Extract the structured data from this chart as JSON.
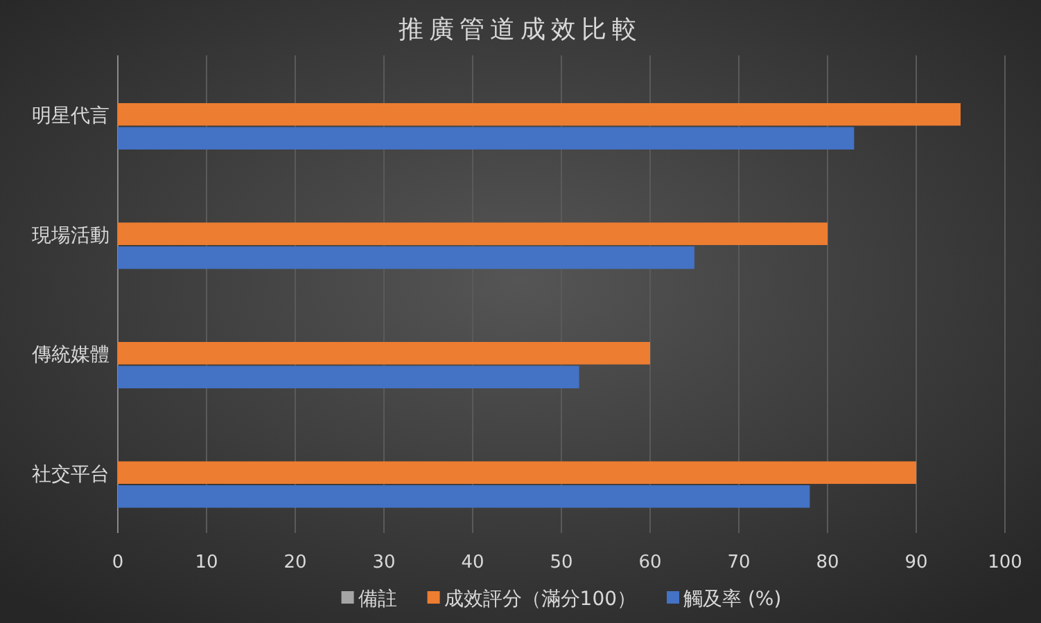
{
  "chart_data": {
    "type": "bar",
    "orientation": "horizontal",
    "title": "推廣管道成效比較",
    "categories": [
      "明星代言",
      "現場活動",
      "傳統媒體",
      "社交平台"
    ],
    "series": [
      {
        "name": "備註",
        "color": "#a5a5a5",
        "values": [
          null,
          null,
          null,
          null
        ]
      },
      {
        "name": "成效評分（滿分100）",
        "color": "#ed7d31",
        "values": [
          95,
          80,
          60,
          90
        ]
      },
      {
        "name": "觸及率 (%)",
        "color": "#4472c4",
        "values": [
          83,
          65,
          52,
          78
        ]
      }
    ],
    "xlim": [
      0,
      100
    ],
    "xticks": [
      0,
      10,
      20,
      30,
      40,
      50,
      60,
      70,
      80,
      90,
      100
    ],
    "grid": "x",
    "legend": "bottom"
  }
}
